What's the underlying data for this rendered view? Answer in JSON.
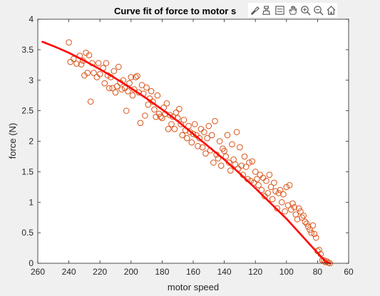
{
  "title": "Curve fit of force to motor s",
  "toolbar": {
    "icons": [
      "brush-icon",
      "data-tips-icon",
      "legend-icon",
      "pan-icon",
      "zoom-in-icon",
      "zoom-out-icon",
      "home-icon"
    ]
  },
  "colors": {
    "figure_bg": "#f0f0f0",
    "axes_bg": "#ffffff",
    "marker": "#d95319",
    "fit_line": "#ff0000",
    "axis": "#262626"
  },
  "chart_data": {
    "type": "scatter",
    "title": "Curve fit of force to motor s",
    "xlabel": "motor speed",
    "ylabel": "force (N)",
    "xlim": [
      60,
      260
    ],
    "ylim": [
      0,
      4
    ],
    "x_reversed": true,
    "x_ticks": [
      260,
      240,
      220,
      200,
      180,
      160,
      140,
      120,
      100,
      80,
      60
    ],
    "y_ticks": [
      0,
      0.5,
      1,
      1.5,
      2,
      2.5,
      3,
      3.5,
      4
    ],
    "x_tick_labels": [
      "260",
      "240",
      "220",
      "200",
      "180",
      "160",
      "140",
      "120",
      "100",
      "80",
      "60"
    ],
    "y_tick_labels": [
      "0",
      "0.5",
      "1",
      "1.5",
      "2",
      "2.5",
      "3",
      "3.5",
      "4"
    ],
    "grid": false,
    "series": [
      {
        "kind": "scatter",
        "marker": "open-circle",
        "points": [
          [
            240,
            3.62
          ],
          [
            239,
            3.3
          ],
          [
            237,
            3.35
          ],
          [
            235,
            3.27
          ],
          [
            233,
            3.4
          ],
          [
            232,
            3.26
          ],
          [
            231,
            3.32
          ],
          [
            230,
            3.08
          ],
          [
            229,
            3.45
          ],
          [
            228,
            3.12
          ],
          [
            227,
            3.41
          ],
          [
            226,
            2.65
          ],
          [
            225,
            3.28
          ],
          [
            224,
            3.12
          ],
          [
            222,
            3.05
          ],
          [
            221,
            3.28
          ],
          [
            220,
            3.1
          ],
          [
            218,
            3.2
          ],
          [
            217,
            2.95
          ],
          [
            216,
            3.28
          ],
          [
            215,
            3.08
          ],
          [
            214,
            2.87
          ],
          [
            213,
            3.05
          ],
          [
            212,
            2.87
          ],
          [
            211,
            3.15
          ],
          [
            210,
            2.8
          ],
          [
            209,
            2.9
          ],
          [
            208,
            3.22
          ],
          [
            207,
            2.96
          ],
          [
            206,
            2.85
          ],
          [
            205,
            3.0
          ],
          [
            204,
            2.87
          ],
          [
            203,
            2.5
          ],
          [
            202,
            2.82
          ],
          [
            201,
            2.95
          ],
          [
            200,
            3.05
          ],
          [
            199,
            2.75
          ],
          [
            198,
            2.85
          ],
          [
            197,
            3.05
          ],
          [
            196,
            3.07
          ],
          [
            195,
            2.8
          ],
          [
            194,
            2.3
          ],
          [
            193,
            2.92
          ],
          [
            192,
            2.78
          ],
          [
            191,
            2.42
          ],
          [
            190,
            2.88
          ],
          [
            189,
            2.6
          ],
          [
            188,
            2.7
          ],
          [
            187,
            2.82
          ],
          [
            186,
            2.65
          ],
          [
            185,
            2.52
          ],
          [
            184,
            2.4
          ],
          [
            183,
            2.75
          ],
          [
            182,
            2.45
          ],
          [
            181,
            2.4
          ],
          [
            180,
            2.38
          ],
          [
            179,
            2.55
          ],
          [
            178,
            2.45
          ],
          [
            177,
            2.62
          ],
          [
            176,
            2.2
          ],
          [
            175,
            2.43
          ],
          [
            174,
            2.28
          ],
          [
            173,
            2.4
          ],
          [
            172,
            2.2
          ],
          [
            171,
            2.47
          ],
          [
            170,
            2.38
          ],
          [
            169,
            2.53
          ],
          [
            168,
            2.28
          ],
          [
            167,
            2.1
          ],
          [
            166,
            2.35
          ],
          [
            165,
            2.18
          ],
          [
            164,
            2.05
          ],
          [
            163,
            2.25
          ],
          [
            162,
            2.15
          ],
          [
            161,
            1.98
          ],
          [
            160,
            2.12
          ],
          [
            159,
            2.28
          ],
          [
            158,
            2.1
          ],
          [
            157,
            1.92
          ],
          [
            156,
            2.05
          ],
          [
            155,
            2.2
          ],
          [
            154,
            1.9
          ],
          [
            153,
            2.15
          ],
          [
            152,
            1.8
          ],
          [
            151,
            2.05
          ],
          [
            150,
            2.25
          ],
          [
            149,
            1.85
          ],
          [
            148,
            2.1
          ],
          [
            147,
            1.65
          ],
          [
            146,
            2.33
          ],
          [
            145,
            1.78
          ],
          [
            144,
            1.72
          ],
          [
            143,
            2.0
          ],
          [
            142,
            1.6
          ],
          [
            141,
            1.88
          ],
          [
            140,
            1.84
          ],
          [
            139,
            1.75
          ],
          [
            138,
            2.1
          ],
          [
            137,
            1.65
          ],
          [
            136,
            1.52
          ],
          [
            135,
            1.95
          ],
          [
            134,
            1.7
          ],
          [
            133,
            1.62
          ],
          [
            132,
            2.15
          ],
          [
            131,
            1.55
          ],
          [
            130,
            1.9
          ],
          [
            129,
            1.6
          ],
          [
            128,
            1.45
          ],
          [
            127,
            1.75
          ],
          [
            126,
            1.58
          ],
          [
            125,
            1.38
          ],
          [
            124,
            1.65
          ],
          [
            123,
            1.35
          ],
          [
            122,
            1.67
          ],
          [
            121,
            1.32
          ],
          [
            120,
            1.5
          ],
          [
            119,
            1.38
          ],
          [
            118,
            1.28
          ],
          [
            117,
            1.45
          ],
          [
            116,
            1.2
          ],
          [
            115,
            1.4
          ],
          [
            114,
            1.1
          ],
          [
            113,
            1.35
          ],
          [
            112,
            1.15
          ],
          [
            111,
            1.45
          ],
          [
            110,
            1.25
          ],
          [
            109,
            1.05
          ],
          [
            108,
            1.32
          ],
          [
            107,
            1.18
          ],
          [
            106,
            0.9
          ],
          [
            105,
            1.15
          ],
          [
            104,
            1.2
          ],
          [
            103,
            1.0
          ],
          [
            102,
            1.13
          ],
          [
            101,
            0.85
          ],
          [
            100,
            1.25
          ],
          [
            99,
            0.95
          ],
          [
            98,
            1.28
          ],
          [
            97,
            0.88
          ],
          [
            96,
            0.98
          ],
          [
            95,
            0.92
          ],
          [
            94,
            0.8
          ],
          [
            93,
            0.72
          ],
          [
            92,
            0.9
          ],
          [
            91,
            0.85
          ],
          [
            90,
            0.75
          ],
          [
            89,
            0.78
          ],
          [
            88,
            0.68
          ],
          [
            87,
            0.65
          ],
          [
            86,
            0.6
          ],
          [
            85,
            0.55
          ],
          [
            84,
            0.5
          ],
          [
            83,
            0.62
          ],
          [
            82,
            0.48
          ],
          [
            81,
            0.42
          ],
          [
            80,
            0.2
          ],
          [
            79,
            0.22
          ],
          [
            78,
            0.15
          ],
          [
            77,
            0.05
          ],
          [
            76,
            0.05
          ],
          [
            75,
            0.02
          ],
          [
            74,
            0.03
          ],
          [
            73,
            0.01
          ],
          [
            72,
            0.0
          ]
        ]
      },
      {
        "kind": "line",
        "style": "fit",
        "x": [
          257,
          250,
          240,
          230,
          220,
          210,
          200,
          190,
          180,
          170,
          160,
          150,
          140,
          130,
          120,
          110,
          100,
          90,
          85,
          80,
          75,
          72
        ],
        "y": [
          3.63,
          3.56,
          3.45,
          3.32,
          3.18,
          3.03,
          2.87,
          2.7,
          2.52,
          2.33,
          2.12,
          1.91,
          1.7,
          1.47,
          1.23,
          0.98,
          0.73,
          0.45,
          0.31,
          0.17,
          0.03,
          0.0
        ]
      }
    ]
  }
}
